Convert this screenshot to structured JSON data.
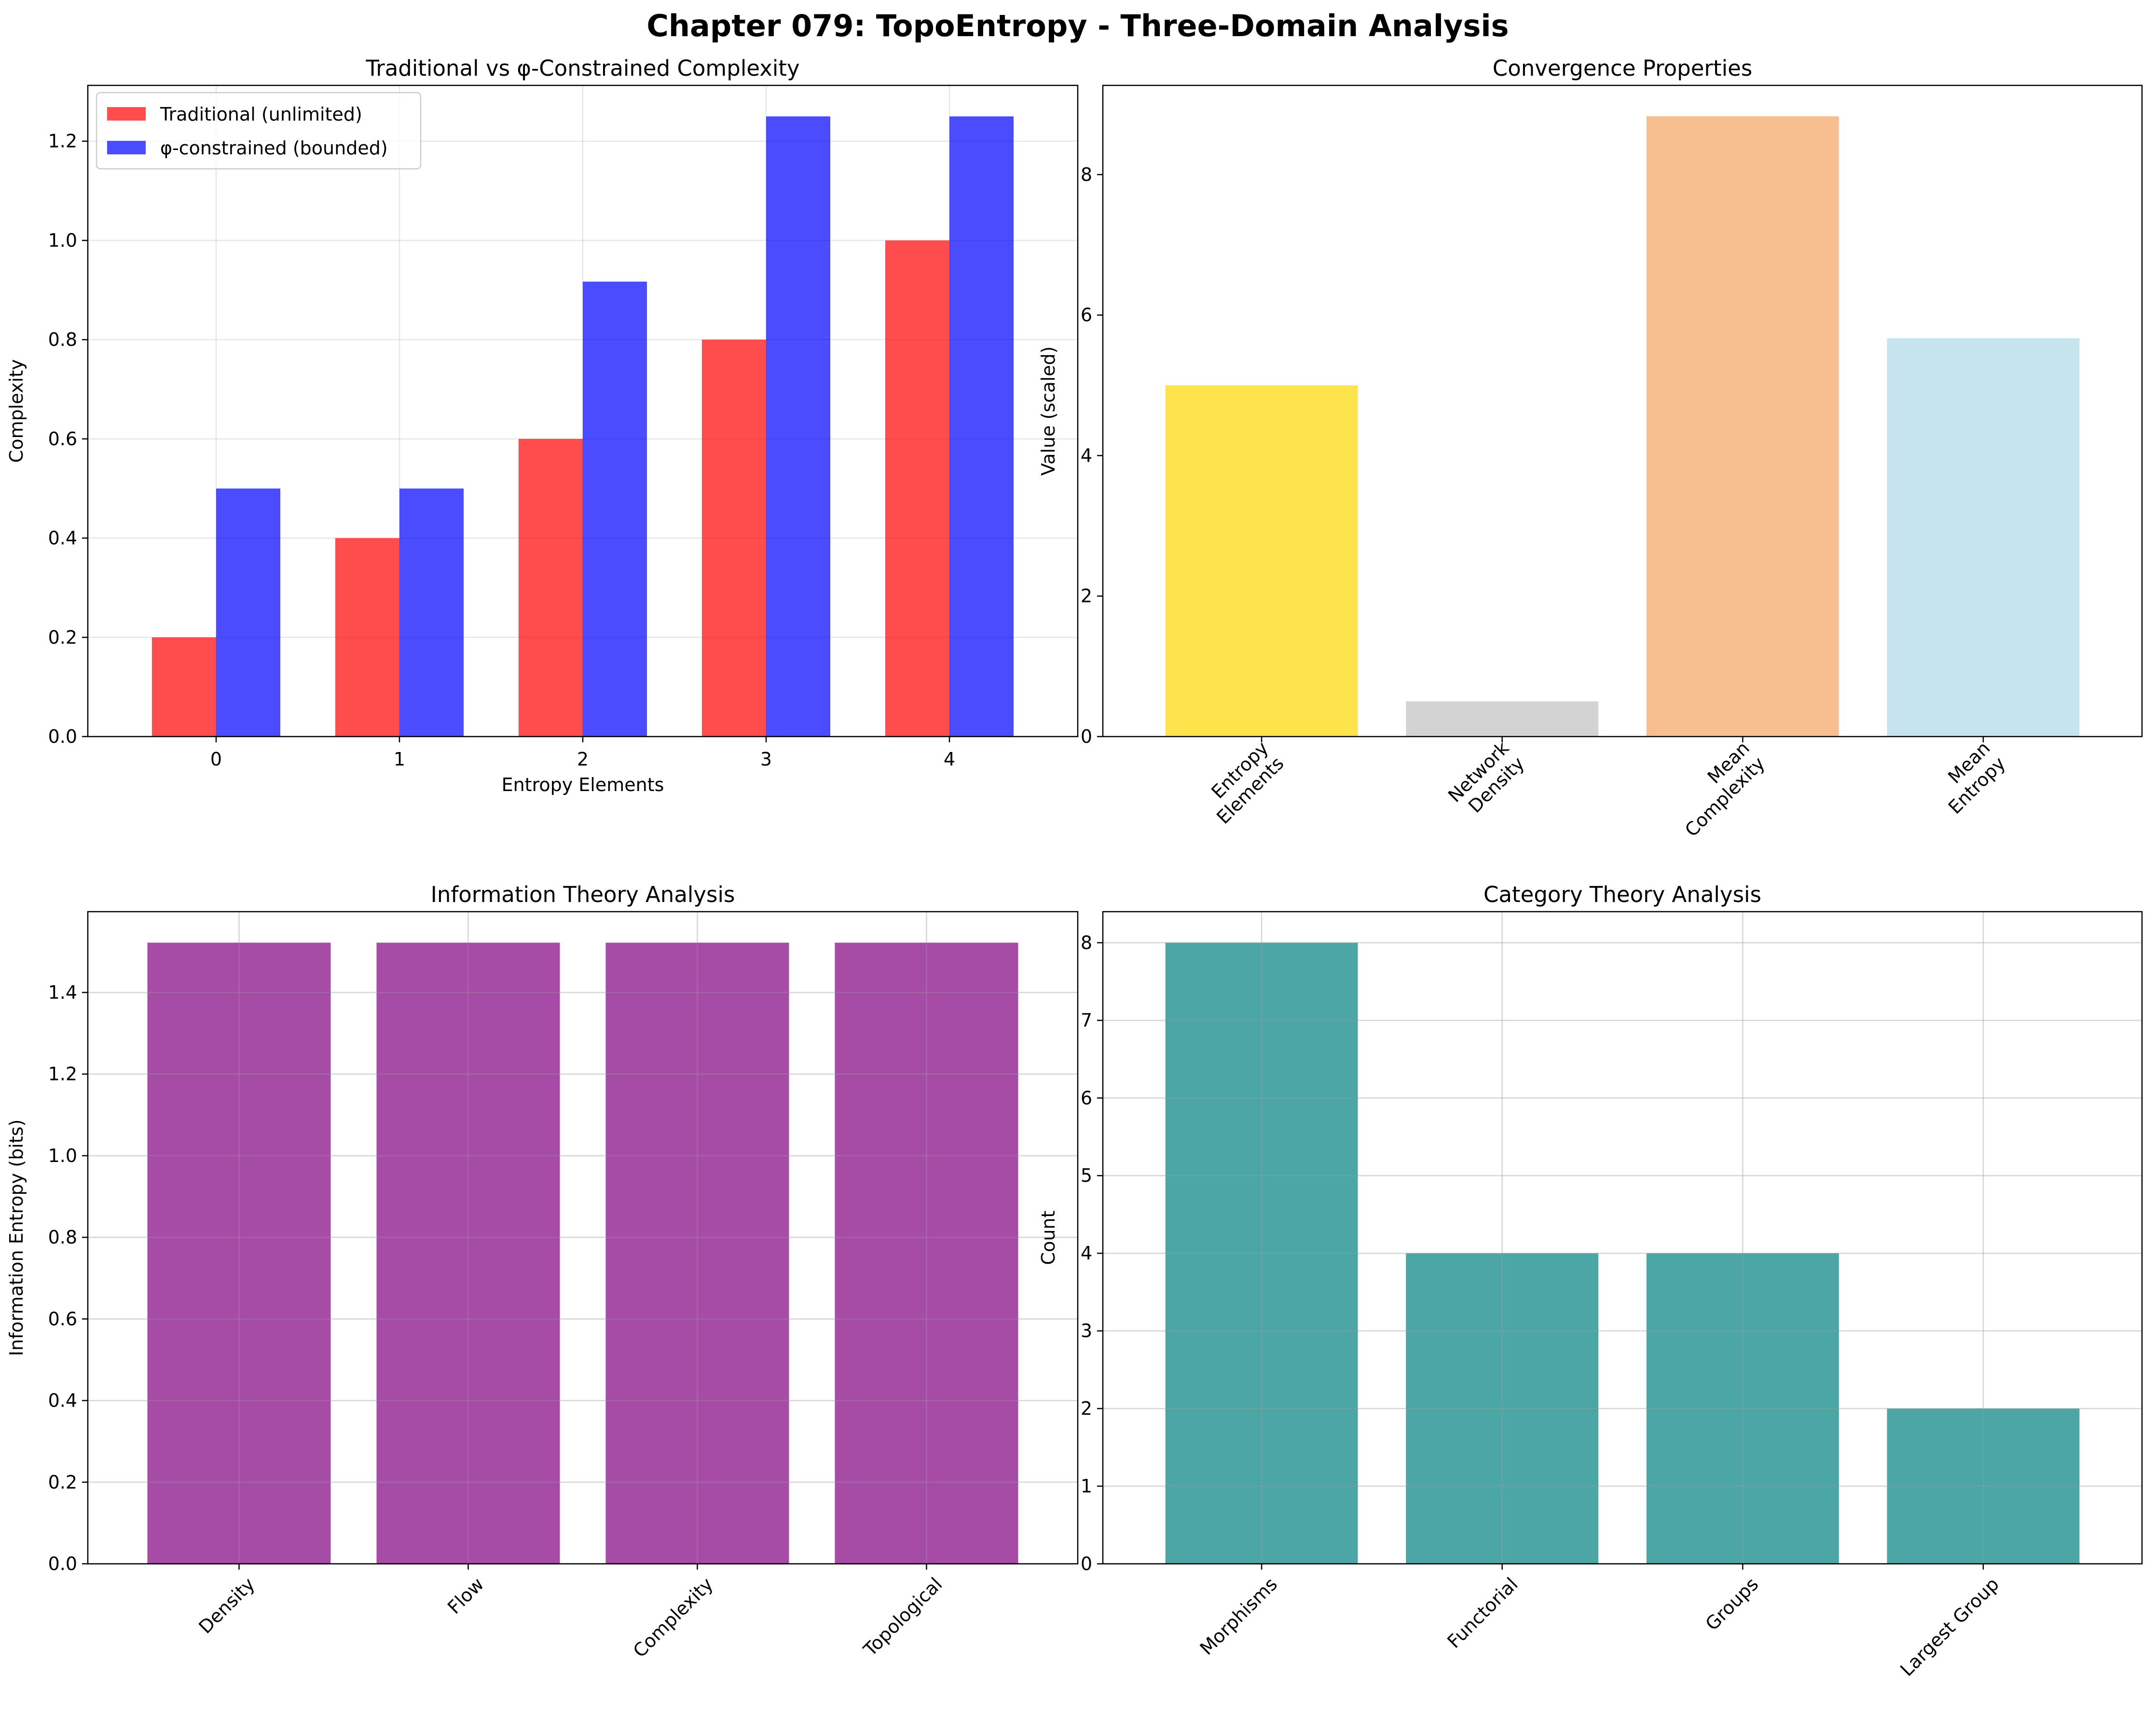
{
  "figure_title": "Chapter 079: TopoEntropy - Three-Domain Analysis",
  "chart_data": [
    {
      "type": "bar",
      "title": "Traditional vs φ-Constrained Complexity",
      "xlabel": "Entropy Elements",
      "ylabel": "Complexity",
      "categories": [
        "0",
        "1",
        "2",
        "3",
        "4"
      ],
      "series": [
        {
          "name": "Traditional (unlimited)",
          "values": [
            0.2,
            0.4,
            0.6,
            0.8,
            1.0
          ],
          "color": "#ff0000",
          "alpha": 0.7
        },
        {
          "name": "φ-constrained (bounded)",
          "values": [
            0.5,
            0.5,
            0.917,
            1.25,
            1.25
          ],
          "color": "#0000ff",
          "alpha": 0.7
        }
      ],
      "ylim": [
        0,
        1.3125
      ],
      "yticks": [
        "0.0",
        "0.2",
        "0.4",
        "0.6",
        "0.8",
        "1.0",
        "1.2"
      ],
      "legend": "top-left",
      "grid": true
    },
    {
      "type": "bar",
      "title": "Convergence Properties",
      "xlabel": "",
      "ylabel": "Value (scaled)",
      "categories": [
        "Entropy\nElements",
        "Network\nDensity",
        "Mean\nComplexity",
        "Mean\nEntropy"
      ],
      "values": [
        5.0,
        0.5,
        8.83,
        5.67
      ],
      "colors": [
        "#ffd700",
        "#c0c0c0",
        "#f4a460",
        "#add8e6"
      ],
      "alpha": 0.7,
      "ylim": [
        0,
        9.27
      ],
      "yticks": [
        "0",
        "2",
        "4",
        "6",
        "8"
      ],
      "xtick_rotation": 45,
      "grid": false
    },
    {
      "type": "bar",
      "title": "Information Theory Analysis",
      "xlabel": "",
      "ylabel": "Information Entropy (bits)",
      "categories": [
        "Density",
        "Flow",
        "Complexity",
        "Topological"
      ],
      "values": [
        1.522,
        1.522,
        1.522,
        1.522
      ],
      "colors": [
        "#800080",
        "#800080",
        "#800080",
        "#800080"
      ],
      "alpha": 0.7,
      "ylim": [
        0,
        1.598
      ],
      "yticks": [
        "0.0",
        "0.2",
        "0.4",
        "0.6",
        "0.8",
        "1.0",
        "1.2",
        "1.4"
      ],
      "xtick_rotation": 45,
      "grid": true
    },
    {
      "type": "bar",
      "title": "Category Theory Analysis",
      "xlabel": "",
      "ylabel": "Count",
      "categories": [
        "Morphisms",
        "Functorial",
        "Groups",
        "Largest Group"
      ],
      "values": [
        8,
        4,
        4,
        2
      ],
      "colors": [
        "#008080",
        "#008080",
        "#008080",
        "#008080"
      ],
      "alpha": 0.7,
      "ylim": [
        0,
        8.4
      ],
      "yticks": [
        "0",
        "1",
        "2",
        "3",
        "4",
        "5",
        "6",
        "7",
        "8"
      ],
      "xtick_rotation": 45,
      "grid": true
    }
  ]
}
